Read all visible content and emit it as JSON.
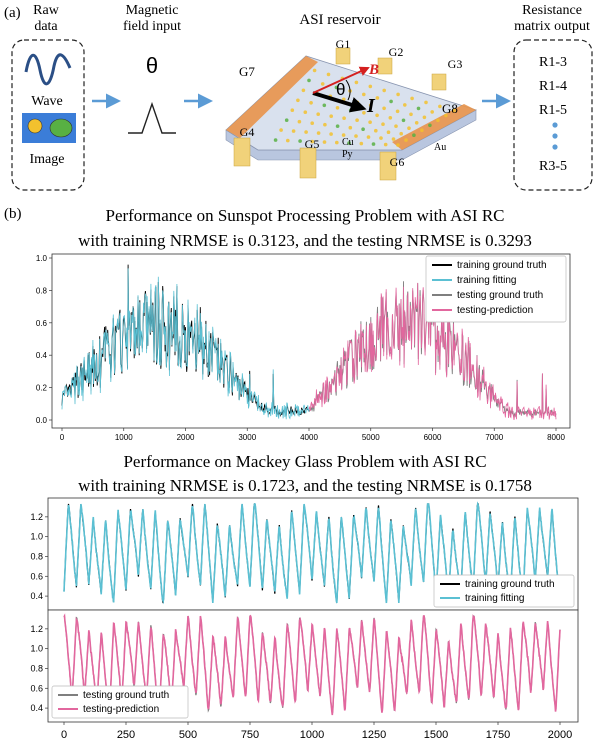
{
  "panel_a": {
    "label": "(a)",
    "raw_data": {
      "title_line1": "Raw",
      "title_line2": "data",
      "wave_label": "Wave",
      "image_label": "Image"
    },
    "magnetic_input": {
      "title_line1": "Magnetic",
      "title_line2": "field input",
      "symbol": "θ"
    },
    "reservoir": {
      "title": "ASI reservoir",
      "gates": [
        "G1",
        "G2",
        "G3",
        "G4",
        "G5",
        "G6",
        "G7",
        "G8"
      ],
      "field_symbol": "B",
      "current_symbol": "I",
      "angle_symbol": "θ",
      "materials": [
        "Cu",
        "Py",
        "Au"
      ]
    },
    "output": {
      "title_line1": "Resistance",
      "title_line2": "matrix output",
      "items": [
        "R1-3",
        "R1-4",
        "R1-5",
        "R3-5"
      ]
    },
    "colors": {
      "arrow": "#5b9bd5",
      "gold": "#e8934a",
      "field": "#d42020",
      "wave": "#2b4f86",
      "yellow": "#f2c12e",
      "green": "#58b043",
      "blue_box": "#3b7dd8"
    }
  },
  "panel_b": {
    "label": "(b)",
    "chart_data": [
      {
        "type": "line",
        "title_line1": "Performance on Sunspot Processing Problem with ASI RC",
        "title_line2": "with training NRMSE is 0.3123, and the testing NRMSE is 0.3293",
        "xlim": [
          0,
          8000
        ],
        "ylim": [
          0,
          1.0
        ],
        "xticks": [
          "0",
          "1000",
          "2000",
          "3000",
          "4000",
          "5000",
          "6000",
          "7000",
          "8000"
        ],
        "yticks": [
          "0.0",
          "0.2",
          "0.4",
          "0.6",
          "0.8",
          "1.0"
        ],
        "legend_position": "top-right",
        "series": [
          {
            "name": "training ground truth",
            "color": "#000000",
            "x_range": [
              0,
              4000
            ]
          },
          {
            "name": "training fitting",
            "color": "#5bc0d3",
            "x_range": [
              0,
              4000
            ]
          },
          {
            "name": "testing ground truth",
            "color": "#7f7f7f",
            "x_range": [
              4000,
              8000
            ]
          },
          {
            "name": "testing-prediction",
            "color": "#e2679e",
            "x_range": [
              4000,
              8000
            ]
          }
        ]
      },
      {
        "type": "line",
        "title_line1": "Performance on Mackey Glass Problem with ASI RC",
        "title_line2": "with training NRMSE is 0.1723, and the testing NRMSE is 0.1758",
        "xlim": [
          0,
          2000
        ],
        "ylim": [
          0.3,
          1.35
        ],
        "xticks": [
          "0",
          "250",
          "500",
          "750",
          "1000",
          "1250",
          "1500",
          "1750",
          "2000"
        ],
        "yticks": [
          "0.4",
          "0.6",
          "0.8",
          "1.0",
          "1.2"
        ],
        "subplots": [
          {
            "legend_position": "bottom-right",
            "series": [
              {
                "name": "training ground truth",
                "color": "#000000"
              },
              {
                "name": "training fitting",
                "color": "#5bc0d3"
              }
            ]
          },
          {
            "legend_position": "bottom-left",
            "series": [
              {
                "name": "testing ground truth",
                "color": "#7f7f7f"
              },
              {
                "name": "testing-prediction",
                "color": "#e2679e"
              }
            ]
          }
        ]
      }
    ]
  }
}
